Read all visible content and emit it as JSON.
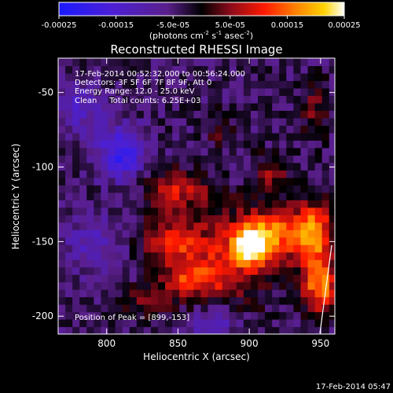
{
  "chart_data": {
    "type": "heatmap",
    "title": "Reconstructed RHESSI Image",
    "xlabel": "Heliocentric X (arcsec)",
    "ylabel": "Heliocentric Y (arcsec)",
    "xlim": [
      766,
      960
    ],
    "ylim": [
      -212,
      -27
    ],
    "x_ticks": [
      800,
      850,
      900,
      950
    ],
    "y_ticks": [
      -50,
      -100,
      -150,
      -200
    ],
    "colorbar": {
      "range": [
        -0.00025,
        0.00025
      ],
      "tick_values": [
        -0.00025,
        -0.00015,
        -5e-05,
        5e-05,
        0.00015,
        0.00025
      ],
      "tick_labels": [
        "-0.00025",
        "-0.00015",
        "-5.0e-05",
        "5.0e-05",
        "0.00015",
        "0.00025"
      ],
      "unit_prefix": "(photons cm",
      "unit_sup1": "-2",
      "unit_mid": " s",
      "unit_sup2": "-1",
      "unit_mid2": " asec",
      "unit_sup3": "-2",
      "unit_suffix": ")"
    },
    "info_lines": [
      "17-Feb-2014 00:52:32.000 to 00:56:24.000",
      "Detectors: 3F 5F 6F 7F 8F 9F, Att 0",
      "Energy Range: 12.0 - 25.0 keV",
      "Clean     Total counts: 6.25E+03"
    ],
    "peak_label": "Position of Peak = [899,-153]",
    "timestamp": "17-Feb-2014 05:47",
    "regions": [
      {
        "x": 885,
        "y": -160,
        "v": 0.00012,
        "sx": 22,
        "sy": 22
      },
      {
        "x": 915,
        "y": -145,
        "v": 0.00018,
        "sx": 14,
        "sy": 12
      },
      {
        "x": 900,
        "y": -153,
        "v": 0.00021,
        "sx": 8,
        "sy": 8
      },
      {
        "x": 945,
        "y": -145,
        "v": 0.00022,
        "sx": 10,
        "sy": 14
      },
      {
        "x": 950,
        "y": -180,
        "v": 0.0002,
        "sx": 9,
        "sy": 12
      },
      {
        "x": 845,
        "y": -150,
        "v": 0.00013,
        "sx": 14,
        "sy": 12
      },
      {
        "x": 850,
        "y": -115,
        "v": 0.00012,
        "sx": 16,
        "sy": 9
      },
      {
        "x": 860,
        "y": -175,
        "v": 0.00012,
        "sx": 14,
        "sy": 8
      },
      {
        "x": 830,
        "y": -190,
        "v": 9e-05,
        "sx": 12,
        "sy": 7
      },
      {
        "x": 915,
        "y": -105,
        "v": 9e-05,
        "sx": 8,
        "sy": 10
      },
      {
        "x": 945,
        "y": -60,
        "v": 7e-05,
        "sx": 7,
        "sy": 14
      },
      {
        "x": 880,
        "y": -75,
        "v": 6e-05,
        "sx": 7,
        "sy": 9
      },
      {
        "x": 810,
        "y": -90,
        "v": -0.00016,
        "sx": 11,
        "sy": 12
      },
      {
        "x": 780,
        "y": -60,
        "v": -8e-05,
        "sx": 12,
        "sy": 12
      },
      {
        "x": 790,
        "y": -150,
        "v": -7e-05,
        "sx": 14,
        "sy": 14
      },
      {
        "x": 875,
        "y": -205,
        "v": -8e-05,
        "sx": 12,
        "sy": 8
      }
    ],
    "grid": false
  }
}
